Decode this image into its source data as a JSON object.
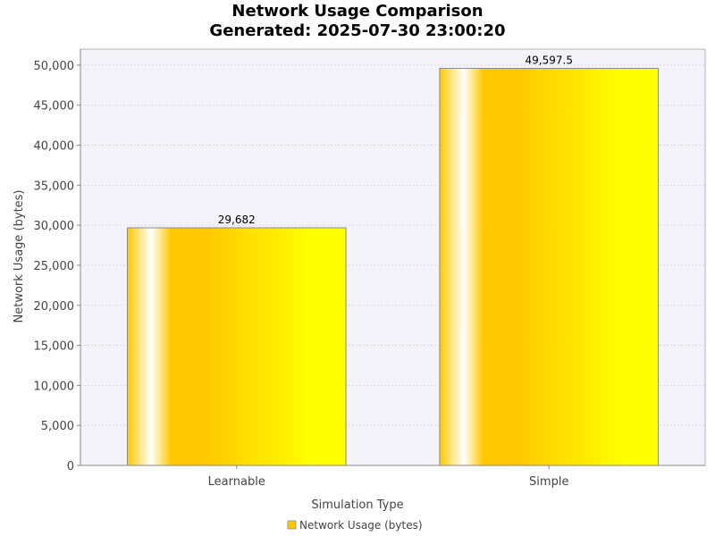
{
  "chart_data": {
    "type": "bar",
    "title": "Network Usage Comparison",
    "subtitle": "Generated: 2025-07-30 23:00:20",
    "xlabel": "Simulation Type",
    "ylabel": "Network Usage (bytes)",
    "categories": [
      "Learnable",
      "Simple"
    ],
    "series": [
      {
        "name": "Network Usage (bytes)",
        "values": [
          29682,
          49597.5
        ]
      }
    ],
    "value_labels": [
      "29,682",
      "49,597.5"
    ],
    "ylim": [
      0,
      52000
    ],
    "yticks": [
      0,
      5000,
      10000,
      15000,
      20000,
      25000,
      30000,
      35000,
      40000,
      45000,
      50000
    ],
    "ytick_labels": [
      "0",
      "5,000",
      "10,000",
      "15,000",
      "20,000",
      "25,000",
      "30,000",
      "35,000",
      "40,000",
      "45,000",
      "50,000"
    ],
    "grid": true,
    "legend": "bottom",
    "colors": {
      "plot_background": "#f4f3f9",
      "bar_light": "#ffffff",
      "bar_mid": "#ffc800",
      "bar_dark": "#ffff00",
      "bar_outline": "#8a8a8a",
      "gridline": "#d4d4dc",
      "axis": "#888888"
    }
  }
}
